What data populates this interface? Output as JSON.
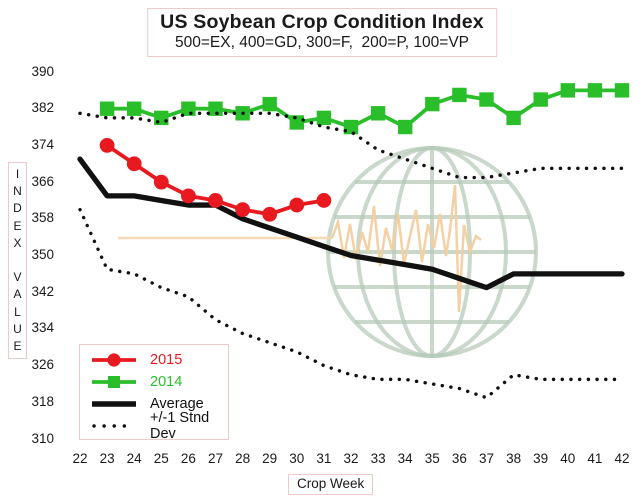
{
  "header": {
    "title": "US Soybean Crop Condition Index",
    "subtitle": "500=EX, 400=GD, 300=F,  200=P, 100=VP"
  },
  "axes": {
    "y_label": "INDEX VALUE",
    "y_label_stacked": "I\nN\nD\nE\nX\n\nV\nA\nL\nU\nE",
    "x_label": "Crop Week"
  },
  "legend": {
    "items": [
      {
        "label": "2015",
        "color": "#e8191f",
        "marker": "circle"
      },
      {
        "label": "2014",
        "color": "#2abf2a",
        "marker": "square"
      },
      {
        "label": "Average",
        "color": "#111111",
        "marker": "thick-line"
      },
      {
        "label": "+/-1 Stnd Dev",
        "color": "#111111",
        "marker": "dotted"
      }
    ]
  },
  "watermark_colors": {
    "globe": "#b7cbb9",
    "zigzag": "#f3cf9f"
  },
  "chart_data": {
    "type": "line",
    "title": "US Soybean Crop Condition Index",
    "subtitle": "500=EX, 400=GD, 300=F,  200=P, 100=VP",
    "xlabel": "Crop Week",
    "ylabel": "INDEX VALUE",
    "x_ticks": [
      22,
      23,
      24,
      25,
      26,
      27,
      28,
      29,
      30,
      31,
      32,
      33,
      34,
      35,
      36,
      37,
      38,
      39,
      40,
      41,
      42
    ],
    "y_ticks": [
      390,
      382,
      374,
      366,
      358,
      350,
      342,
      334,
      326,
      318,
      310
    ],
    "ylim": [
      310,
      390
    ],
    "grid": false,
    "legend_position": "lower-left",
    "series": [
      {
        "name": "2014",
        "color": "#2abf2a",
        "marker": "square",
        "style": "solid",
        "x": [
          23,
          24,
          25,
          26,
          27,
          28,
          29,
          30,
          31,
          32,
          33,
          34,
          35,
          36,
          37,
          38,
          39,
          40,
          41,
          42
        ],
        "values": [
          382,
          382,
          380,
          382,
          382,
          381,
          383,
          379,
          380,
          378,
          381,
          378,
          383,
          385,
          384,
          380,
          384,
          386,
          386,
          386
        ]
      },
      {
        "name": "+1 Stnd Dev",
        "color": "#111111",
        "marker": "none",
        "style": "dotted",
        "x": [
          22,
          23,
          24,
          25,
          26,
          27,
          28,
          29,
          30,
          31,
          32,
          33,
          34,
          35,
          36,
          37,
          38,
          39,
          40,
          41,
          42
        ],
        "values": [
          381,
          380,
          380,
          379,
          381,
          381,
          381,
          381,
          380,
          378,
          377,
          373,
          371,
          369,
          367,
          367,
          368,
          369,
          369,
          369,
          369
        ]
      },
      {
        "name": "-1 Stnd Dev",
        "color": "#111111",
        "marker": "none",
        "style": "dotted",
        "x": [
          22,
          23,
          24,
          25,
          26,
          27,
          28,
          29,
          30,
          31,
          32,
          33,
          34,
          35,
          36,
          37,
          38,
          39,
          40,
          41,
          42
        ],
        "values": [
          360,
          347,
          346,
          343,
          341,
          336,
          333,
          331,
          329,
          326,
          324,
          323,
          323,
          322,
          321,
          319,
          324,
          323,
          323,
          323,
          323
        ]
      },
      {
        "name": "Average",
        "color": "#111111",
        "marker": "none",
        "style": "solid",
        "x": [
          22,
          23,
          24,
          25,
          26,
          27,
          28,
          29,
          30,
          31,
          32,
          33,
          34,
          35,
          36,
          37,
          38,
          39,
          40,
          41,
          42
        ],
        "values": [
          371,
          363,
          363,
          362,
          361,
          361,
          358,
          356,
          354,
          352,
          350,
          349,
          348,
          347,
          345,
          343,
          346,
          346,
          346,
          346,
          346
        ]
      },
      {
        "name": "2015",
        "color": "#e8191f",
        "marker": "circle",
        "style": "solid",
        "x": [
          23,
          24,
          25,
          26,
          27,
          28,
          29,
          30,
          31
        ],
        "values": [
          374,
          370,
          366,
          363,
          362,
          360,
          359,
          361,
          362
        ]
      }
    ]
  }
}
